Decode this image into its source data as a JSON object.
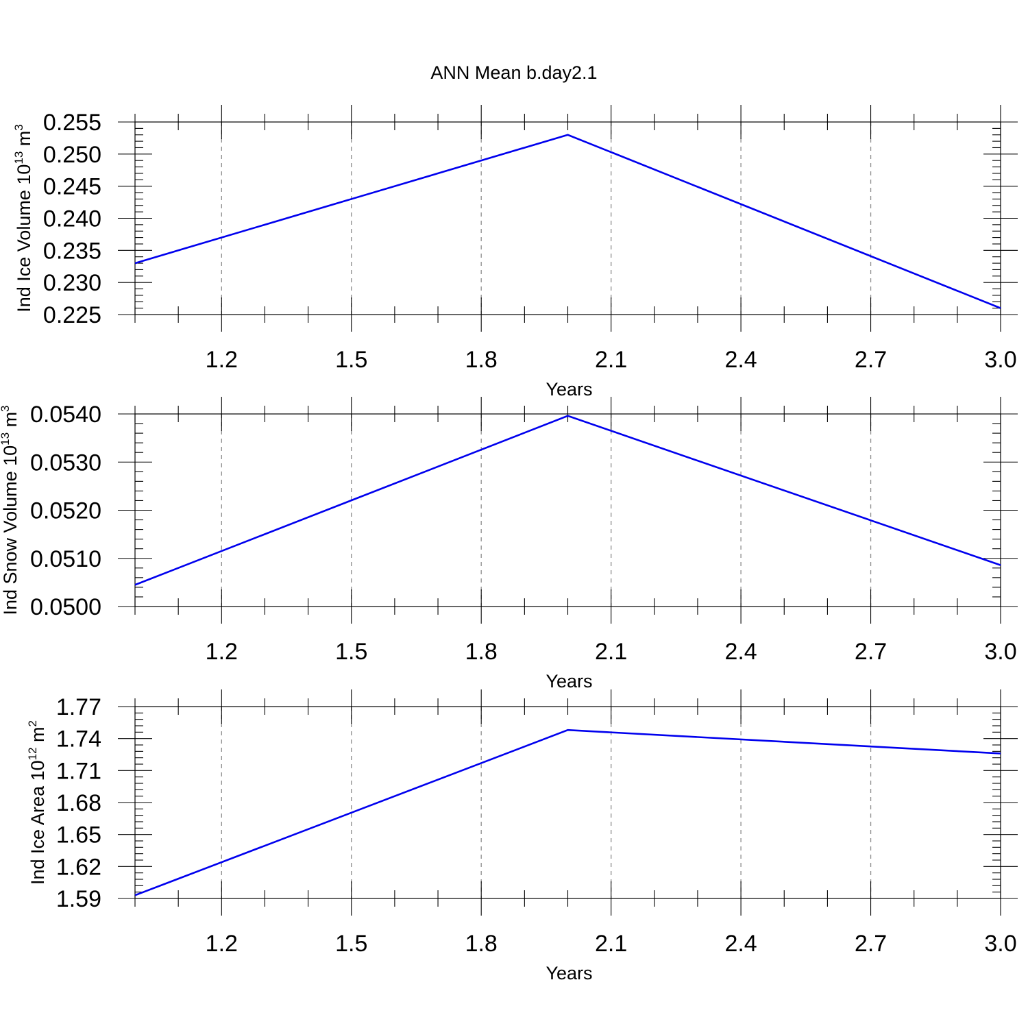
{
  "title": "ANN Mean b.day2.1",
  "chart_data": [
    {
      "type": "line",
      "ylabel_main": "Ind Ice Volume 10",
      "ylabel_sup": "13",
      "ylabel_unit": " m",
      "ylabel_unit_sup": "3",
      "xlabel": "Years",
      "xlim": [
        1.0,
        3.0
      ],
      "ylim": [
        0.225,
        0.255
      ],
      "xticks": [
        1.2,
        1.5,
        1.8,
        2.1,
        2.4,
        2.7,
        3.0
      ],
      "xtick_labels": [
        "1.2",
        "1.5",
        "1.8",
        "2.1",
        "2.4",
        "2.7",
        "3.0"
      ],
      "yticks": [
        0.225,
        0.23,
        0.235,
        0.24,
        0.245,
        0.25,
        0.255
      ],
      "ytick_labels": [
        "0.225",
        "0.230",
        "0.235",
        "0.240",
        "0.245",
        "0.250",
        "0.255"
      ],
      "x": [
        1.0,
        2.0,
        3.0
      ],
      "y": [
        0.233,
        0.253,
        0.226
      ],
      "color": "#0000ee",
      "grid": "dashed vertical at major x ticks"
    },
    {
      "type": "line",
      "ylabel_main": "Ind Snow Volume 10",
      "ylabel_sup": "13",
      "ylabel_unit": " m",
      "ylabel_unit_sup": "3",
      "xlabel": "Years",
      "xlim": [
        1.0,
        3.0
      ],
      "ylim": [
        0.05,
        0.054
      ],
      "xticks": [
        1.2,
        1.5,
        1.8,
        2.1,
        2.4,
        2.7,
        3.0
      ],
      "xtick_labels": [
        "1.2",
        "1.5",
        "1.8",
        "2.1",
        "2.4",
        "2.7",
        "3.0"
      ],
      "yticks": [
        0.05,
        0.051,
        0.052,
        0.053,
        0.054
      ],
      "ytick_labels": [
        "0.0500",
        "0.0510",
        "0.0520",
        "0.0530",
        "0.0540"
      ],
      "x": [
        1.0,
        2.0,
        3.0
      ],
      "y": [
        0.05045,
        0.05396,
        0.05086
      ],
      "color": "#0000ee",
      "grid": "dashed vertical at major x ticks"
    },
    {
      "type": "line",
      "ylabel_main": "Ind Ice Area 10",
      "ylabel_sup": "12",
      "ylabel_unit": " m",
      "ylabel_unit_sup": "2",
      "xlabel": "Years",
      "xlim": [
        1.0,
        3.0
      ],
      "ylim": [
        1.59,
        1.77
      ],
      "xticks": [
        1.2,
        1.5,
        1.8,
        2.1,
        2.4,
        2.7,
        3.0
      ],
      "xtick_labels": [
        "1.2",
        "1.5",
        "1.8",
        "2.1",
        "2.4",
        "2.7",
        "3.0"
      ],
      "yticks": [
        1.59,
        1.62,
        1.65,
        1.68,
        1.71,
        1.74,
        1.77
      ],
      "ytick_labels": [
        "1.59",
        "1.62",
        "1.65",
        "1.68",
        "1.71",
        "1.74",
        "1.77"
      ],
      "x": [
        1.0,
        2.0,
        3.0
      ],
      "y": [
        1.593,
        1.748,
        1.726
      ],
      "color": "#0000ee",
      "grid": "dashed vertical at major x ticks"
    }
  ]
}
